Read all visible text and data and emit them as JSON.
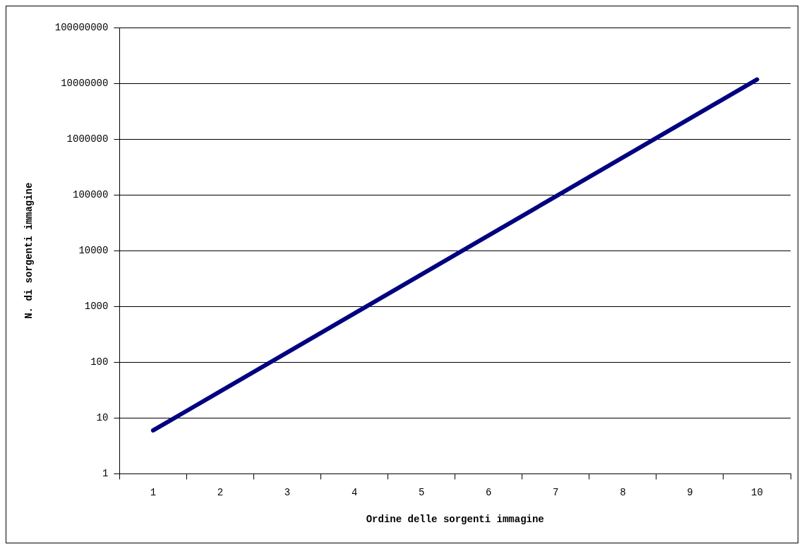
{
  "chart_data": {
    "type": "line",
    "xlabel": "Ordine delle sorgenti immagine",
    "ylabel": "N. di sorgenti immagine",
    "categories": [
      "1",
      "2",
      "3",
      "4",
      "5",
      "6",
      "7",
      "8",
      "9",
      "10"
    ],
    "series": [
      {
        "color": "#000080",
        "values": [
          6,
          30,
          150,
          750,
          3750,
          18750,
          93750,
          468750,
          2343750,
          11718750
        ]
      }
    ],
    "log": "y",
    "ylim": [
      1,
      100000000
    ],
    "yticks": [
      1,
      10,
      100,
      1000,
      10000,
      100000,
      1000000,
      10000000,
      100000000
    ],
    "grid": "y",
    "legend": false,
    "marker": "none",
    "line_style": "solid"
  }
}
